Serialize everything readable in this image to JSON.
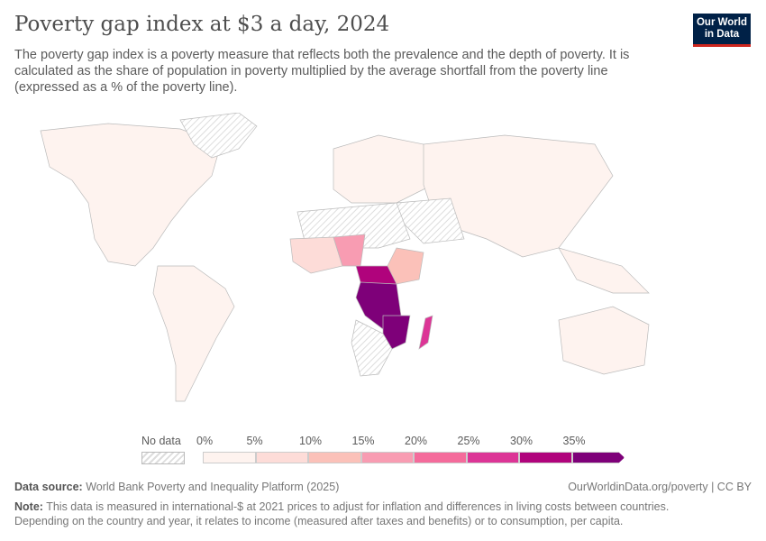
{
  "header": {
    "title": "Poverty gap index at $3 a day, 2024",
    "subtitle": "The poverty gap index is a poverty measure that reflects both the prevalence and the depth of poverty. It is calculated as the share of population in poverty multiplied by the average shortfall from the poverty line (expressed as a % of the poverty line).",
    "logo": "Our World in Data"
  },
  "legend": {
    "no_data_label": "No data",
    "ticks": [
      "0%",
      "5%",
      "10%",
      "15%",
      "20%",
      "25%",
      "30%",
      "35%"
    ],
    "bins": [
      0,
      5,
      10,
      15,
      20,
      25,
      30,
      35
    ],
    "colors": [
      "#fef3ef",
      "#fddcd8",
      "#fbc1b9",
      "#f89cb2",
      "#f46b9b",
      "#dc3596",
      "#b0037c",
      "#7e0079"
    ],
    "no_data_color": "#e5e5e5"
  },
  "footer": {
    "source_label": "Data source:",
    "source": "World Bank Poverty and Inequality Platform (2025)",
    "url": "OurWorldinData.org/poverty | CC BY",
    "note_label": "Note:",
    "note": "This data is measured in international-$ at 2021 prices to adjust for inflation and differences in living costs between countries. Depending on the country and year, it relates to income (measured after taxes and benefits) or to consumption, per capita."
  }
}
